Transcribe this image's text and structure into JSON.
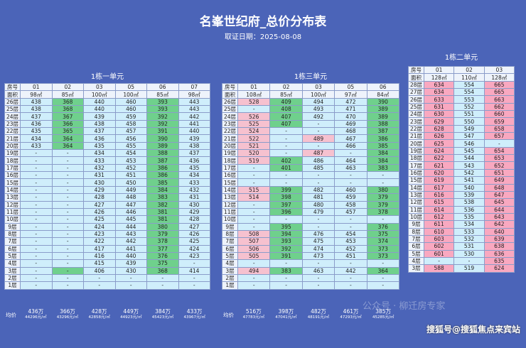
{
  "header": {
    "title": "名峯世纪府_总价分布表",
    "date": "取证日期：2025-08-08"
  },
  "floors": [
    "26层",
    "25层",
    "24层",
    "23层",
    "22层",
    "21层",
    "20层",
    "19层",
    "18层",
    "17层",
    "16层",
    "15层",
    "14层",
    "13层",
    "12层",
    "11层",
    "10层",
    "9层",
    "8层",
    "7层",
    "6层",
    "5层",
    "4层",
    "3层",
    "2层",
    "1层"
  ],
  "floors2": [
    "28层",
    "27层",
    "26层",
    "25层",
    "24层",
    "23层",
    "22层",
    "21层",
    "20层",
    "19层",
    "18层",
    "17层",
    "16层",
    "15层",
    "14层",
    "13层",
    "12层",
    "11层",
    "10层",
    "9层",
    "8层",
    "7层",
    "6层",
    "5层",
    "4层",
    "3层"
  ],
  "row_label_room": "房号",
  "row_label_area": "面积",
  "avg_label": "均价",
  "blocks": [
    {
      "title": "1栋一单元",
      "units": [
        {
          "no": "01",
          "area": "98㎡",
          "avg_price": "436万",
          "avg_unit": "44296元/㎡"
        },
        {
          "no": "02",
          "area": "85㎡",
          "avg_price": "366万",
          "avg_unit": "43296元/㎡"
        },
        {
          "no": "03",
          "area": "100㎡",
          "avg_price": "428万",
          "avg_unit": "42858元/㎡"
        },
        {
          "no": "05",
          "area": "100㎡",
          "avg_price": "449万",
          "avg_unit": "44923元/㎡"
        },
        {
          "no": "06",
          "area": "85㎡",
          "avg_price": "384万",
          "avg_unit": "45423元/㎡"
        },
        {
          "no": "07",
          "area": "98㎡",
          "avg_price": "433万",
          "avg_unit": "43967元/㎡"
        }
      ],
      "rows": [
        [
          "438",
          "368",
          "440",
          "460",
          "393",
          "443"
        ],
        [
          "438",
          "368",
          "440",
          "460",
          "393",
          "443"
        ],
        [
          "437",
          "367",
          "439",
          "459",
          "392",
          "442"
        ],
        [
          "436",
          "366",
          "438",
          "458",
          "392",
          "441"
        ],
        [
          "435",
          "365",
          "437",
          "457",
          "391",
          "440"
        ],
        [
          "434",
          "364",
          "436",
          "456",
          "390",
          "439"
        ],
        [
          "433",
          "364",
          "435",
          "455",
          "389",
          "438"
        ],
        [
          "-",
          "-",
          "434",
          "454",
          "388",
          "437"
        ],
        [
          "-",
          "-",
          "433",
          "453",
          "387",
          "436"
        ],
        [
          "-",
          "-",
          "432",
          "452",
          "386",
          "435"
        ],
        [
          "-",
          "-",
          "431",
          "451",
          "386",
          "434"
        ],
        [
          "-",
          "-",
          "430",
          "450",
          "385",
          "433"
        ],
        [
          "-",
          "-",
          "429",
          "449",
          "384",
          "432"
        ],
        [
          "-",
          "-",
          "428",
          "448",
          "383",
          "431"
        ],
        [
          "-",
          "-",
          "427",
          "447",
          "382",
          "430"
        ],
        [
          "-",
          "-",
          "426",
          "446",
          "381",
          "429"
        ],
        [
          "-",
          "-",
          "425",
          "445",
          "381",
          "428"
        ],
        [
          "-",
          "-",
          "424",
          "444",
          "380",
          "427"
        ],
        [
          "-",
          "-",
          "423",
          "443",
          "379",
          "426"
        ],
        [
          "-",
          "-",
          "422",
          "442",
          "378",
          "425"
        ],
        [
          "-",
          "-",
          "417",
          "441",
          "377",
          "424"
        ],
        [
          "-",
          "-",
          "416",
          "440",
          "376",
          "423"
        ],
        [
          "-",
          "-",
          "415",
          "439",
          "375",
          "-"
        ],
        [
          "-",
          "-",
          "406",
          "430",
          "368",
          "414"
        ],
        [
          "-",
          "-",
          "-",
          "-",
          "-",
          "-"
        ],
        [
          "-",
          "-",
          "-",
          "-",
          "-",
          "-"
        ]
      ],
      "colors": [
        [
          0,
          1,
          0,
          0,
          1,
          0
        ],
        [
          0,
          1,
          0,
          0,
          1,
          0
        ],
        [
          0,
          1,
          0,
          0,
          1,
          0
        ],
        [
          0,
          1,
          0,
          0,
          1,
          0
        ],
        [
          0,
          1,
          0,
          0,
          1,
          0
        ],
        [
          0,
          1,
          0,
          0,
          1,
          0
        ],
        [
          0,
          1,
          0,
          0,
          1,
          0
        ],
        [
          0,
          0,
          0,
          0,
          1,
          0
        ],
        [
          0,
          0,
          0,
          0,
          1,
          0
        ],
        [
          0,
          0,
          0,
          0,
          1,
          0
        ],
        [
          0,
          0,
          0,
          0,
          1,
          0
        ],
        [
          0,
          0,
          0,
          0,
          1,
          0
        ],
        [
          0,
          0,
          0,
          0,
          1,
          0
        ],
        [
          0,
          0,
          0,
          0,
          1,
          0
        ],
        [
          0,
          0,
          0,
          0,
          1,
          0
        ],
        [
          0,
          0,
          0,
          0,
          1,
          0
        ],
        [
          0,
          0,
          0,
          0,
          1,
          0
        ],
        [
          0,
          0,
          0,
          0,
          1,
          0
        ],
        [
          0,
          0,
          0,
          0,
          1,
          0
        ],
        [
          0,
          0,
          0,
          0,
          1,
          0
        ],
        [
          0,
          0,
          0,
          0,
          1,
          0
        ],
        [
          0,
          0,
          0,
          0,
          1,
          0
        ],
        [
          0,
          0,
          0,
          0,
          1,
          0
        ],
        [
          0,
          1,
          0,
          0,
          1,
          0
        ],
        [
          0,
          0,
          0,
          0,
          0,
          0
        ],
        [
          0,
          0,
          0,
          0,
          0,
          0
        ]
      ]
    },
    {
      "title": "1栋三单元",
      "units": [
        {
          "no": "01",
          "area": "108㎡",
          "avg_price": "516万",
          "avg_unit": "47783元/㎡"
        },
        {
          "no": "02",
          "area": "85㎡",
          "avg_price": "398万",
          "avg_unit": "47041元/㎡"
        },
        {
          "no": "03",
          "area": "100㎡",
          "avg_price": "482万",
          "avg_unit": "48191元/㎡"
        },
        {
          "no": "05",
          "area": "97㎡",
          "avg_price": "461万",
          "avg_unit": "47293元/㎡"
        },
        {
          "no": "06",
          "area": "84㎡",
          "avg_price": "385万",
          "avg_unit": "45285元/㎡"
        }
      ],
      "rows": [
        [
          "528",
          "409",
          "494",
          "472",
          "390"
        ],
        [
          "-",
          "408",
          "493",
          "471",
          "389"
        ],
        [
          "526",
          "407",
          "492",
          "470",
          "389"
        ],
        [
          "525",
          "407",
          "-",
          "469",
          "388"
        ],
        [
          "524",
          "-",
          "-",
          "468",
          "387"
        ],
        [
          "522",
          "-",
          "489",
          "467",
          "386"
        ],
        [
          "521",
          "-",
          "-",
          "466",
          "385"
        ],
        [
          "520",
          "-",
          "487",
          "-",
          "384"
        ],
        [
          "519",
          "402",
          "486",
          "464",
          "384"
        ],
        [
          "-",
          "401",
          "485",
          "463",
          "383"
        ],
        [
          "-",
          "-",
          "-",
          "-",
          "-"
        ],
        [
          "-",
          "-",
          "-",
          "-",
          "-"
        ],
        [
          "515",
          "399",
          "482",
          "460",
          "380"
        ],
        [
          "514",
          "398",
          "481",
          "459",
          "379"
        ],
        [
          "-",
          "397",
          "480",
          "458",
          "379"
        ],
        [
          "-",
          "396",
          "479",
          "457",
          "378"
        ],
        [
          "-",
          "-",
          "-",
          "-",
          "-"
        ],
        [
          "-",
          "395",
          "-",
          "-",
          "376"
        ],
        [
          "508",
          "394",
          "476",
          "454",
          "375"
        ],
        [
          "507",
          "393",
          "475",
          "453",
          "374"
        ],
        [
          "506",
          "392",
          "474",
          "452",
          "373"
        ],
        [
          "505",
          "391",
          "473",
          "451",
          "373"
        ],
        [
          "-",
          "-",
          "-",
          "-",
          "-"
        ],
        [
          "494",
          "383",
          "463",
          "442",
          "364"
        ],
        [
          "-",
          "-",
          "-",
          "-",
          "-"
        ],
        [
          "-",
          "-",
          "-",
          "-",
          "-"
        ]
      ],
      "colors": [
        [
          2,
          1,
          0,
          0,
          1
        ],
        [
          0,
          1,
          0,
          0,
          1
        ],
        [
          2,
          1,
          0,
          0,
          1
        ],
        [
          2,
          1,
          0,
          0,
          1
        ],
        [
          2,
          0,
          0,
          0,
          1
        ],
        [
          2,
          0,
          2,
          0,
          1
        ],
        [
          2,
          0,
          0,
          0,
          1
        ],
        [
          2,
          0,
          2,
          0,
          1
        ],
        [
          2,
          1,
          0,
          0,
          1
        ],
        [
          0,
          1,
          0,
          0,
          1
        ],
        [
          0,
          0,
          0,
          0,
          0
        ],
        [
          0,
          0,
          0,
          0,
          0
        ],
        [
          2,
          1,
          0,
          0,
          1
        ],
        [
          2,
          1,
          0,
          0,
          1
        ],
        [
          0,
          1,
          0,
          0,
          1
        ],
        [
          0,
          1,
          0,
          0,
          1
        ],
        [
          0,
          0,
          0,
          0,
          0
        ],
        [
          0,
          1,
          0,
          0,
          1
        ],
        [
          2,
          1,
          0,
          0,
          1
        ],
        [
          2,
          1,
          0,
          0,
          1
        ],
        [
          2,
          1,
          0,
          0,
          1
        ],
        [
          2,
          1,
          0,
          0,
          1
        ],
        [
          0,
          0,
          0,
          0,
          0
        ],
        [
          2,
          1,
          0,
          0,
          1
        ],
        [
          0,
          0,
          0,
          0,
          0
        ],
        [
          0,
          0,
          0,
          0,
          0
        ]
      ]
    },
    {
      "title": "1栋二单元",
      "units": [
        {
          "no": "01",
          "area": "128㎡"
        },
        {
          "no": "02",
          "area": "110㎡"
        },
        {
          "no": "03",
          "area": "128㎡"
        }
      ],
      "rows": [
        [
          "634",
          "554",
          "665"
        ],
        [
          "634",
          "554",
          "665"
        ],
        [
          "633",
          "553",
          "663"
        ],
        [
          "631",
          "552",
          "662"
        ],
        [
          "630",
          "551",
          "660"
        ],
        [
          "629",
          "550",
          "659"
        ],
        [
          "628",
          "549",
          "658"
        ],
        [
          "626",
          "547",
          "657"
        ],
        [
          "625",
          "546",
          "-"
        ],
        [
          "624",
          "545",
          "654"
        ],
        [
          "622",
          "544",
          "653"
        ],
        [
          "621",
          "543",
          "652"
        ],
        [
          "620",
          "542",
          "651"
        ],
        [
          "619",
          "541",
          "649"
        ],
        [
          "617",
          "540",
          "648"
        ],
        [
          "616",
          "539",
          "647"
        ],
        [
          "615",
          "538",
          "645"
        ],
        [
          "614",
          "536",
          "644"
        ],
        [
          "612",
          "535",
          "643"
        ],
        [
          "611",
          "534",
          "642"
        ],
        [
          "610",
          "533",
          "640"
        ],
        [
          "603",
          "532",
          "639"
        ],
        [
          "602",
          "531",
          "638"
        ],
        [
          "601",
          "530",
          "636"
        ],
        [
          "-",
          "-",
          "635"
        ],
        [
          "588",
          "519",
          "624"
        ]
      ],
      "colors": [
        [
          3,
          0,
          3
        ],
        [
          3,
          0,
          3
        ],
        [
          3,
          0,
          3
        ],
        [
          3,
          0,
          3
        ],
        [
          3,
          0,
          3
        ],
        [
          3,
          0,
          3
        ],
        [
          3,
          0,
          3
        ],
        [
          3,
          0,
          3
        ],
        [
          3,
          0,
          0
        ],
        [
          3,
          0,
          3
        ],
        [
          3,
          0,
          3
        ],
        [
          3,
          0,
          3
        ],
        [
          3,
          0,
          3
        ],
        [
          3,
          0,
          3
        ],
        [
          3,
          0,
          3
        ],
        [
          3,
          0,
          3
        ],
        [
          3,
          0,
          3
        ],
        [
          3,
          0,
          3
        ],
        [
          3,
          0,
          3
        ],
        [
          3,
          0,
          3
        ],
        [
          3,
          0,
          3
        ],
        [
          3,
          0,
          3
        ],
        [
          3,
          0,
          3
        ],
        [
          3,
          0,
          3
        ],
        [
          0,
          0,
          3
        ],
        [
          3,
          0,
          3
        ]
      ]
    }
  ],
  "watermark": "搜狐号@搜狐焦点来宾站",
  "watermark2": "公众号 · 柳迁房专家"
}
